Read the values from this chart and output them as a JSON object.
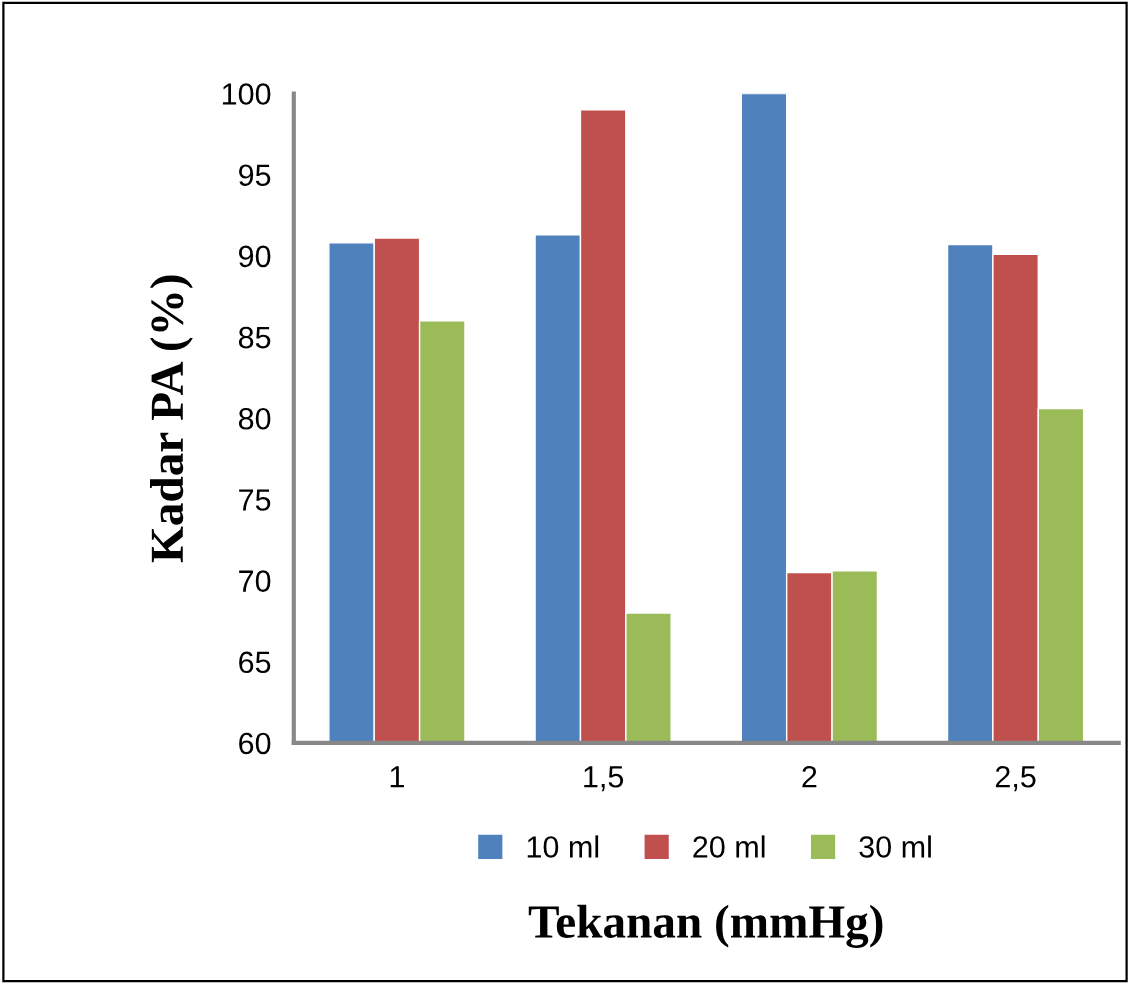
{
  "chart_data": {
    "type": "bar",
    "xlabel": "Tekanan (mmHg)",
    "ylabel": "Kadar PA (%)",
    "categories": [
      "1",
      "1,5",
      "2",
      "2,5"
    ],
    "series": [
      {
        "name": "10 ml",
        "color": "#4f81bd",
        "values": [
          90.8,
          91.3,
          100,
          90.7
        ]
      },
      {
        "name": "20 ml",
        "color": "#c0504d",
        "values": [
          91.1,
          99.0,
          70.5,
          90.1
        ]
      },
      {
        "name": "30 ml",
        "color": "#9bbb59",
        "values": [
          86.0,
          68.0,
          70.6,
          80.6
        ]
      }
    ],
    "ylim": [
      60,
      100
    ],
    "yticks": [
      60,
      65,
      70,
      75,
      80,
      85,
      90,
      95,
      100
    ],
    "grid": false,
    "legend": "bottom"
  }
}
